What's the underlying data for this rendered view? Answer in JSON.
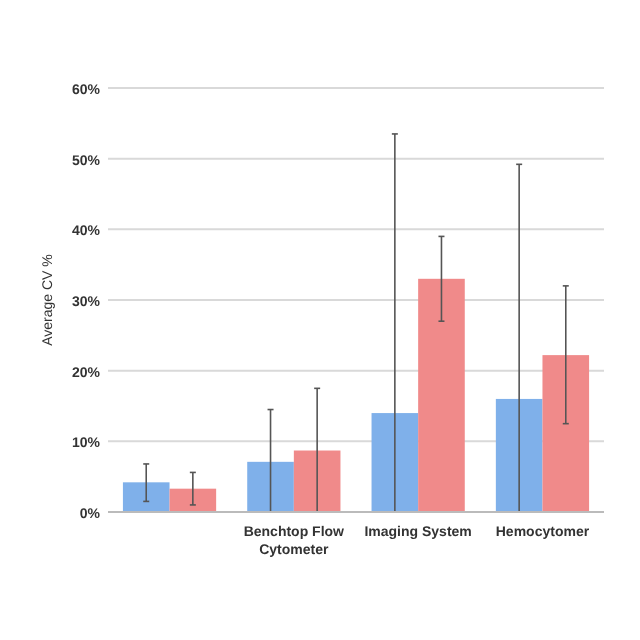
{
  "chart_data": {
    "type": "bar",
    "ylabel": "Average CV %",
    "categories": [
      null,
      "Benchtop Flow Cytometer",
      "Imaging System",
      "Hemocytomer"
    ],
    "series": [
      {
        "color": "#7fb0ea",
        "values": [
          4.2,
          7.1,
          14,
          16
        ],
        "errors": [
          [
            1.5,
            6.8
          ],
          [
            0,
            14.5
          ],
          [
            0,
            53.5
          ],
          [
            0,
            49.2
          ]
        ]
      },
      {
        "color": "#f08a8a",
        "values": [
          3.3,
          8.7,
          33,
          22.2
        ],
        "errors": [
          [
            1,
            5.6
          ],
          [
            0,
            17.5
          ],
          [
            27,
            39
          ],
          [
            12.5,
            32
          ]
        ]
      }
    ],
    "ylim": [
      0,
      60
    ],
    "yticks": [
      {
        "value": 0,
        "label": "0%"
      },
      {
        "value": 10,
        "label": "10%"
      },
      {
        "value": 20,
        "label": "20%"
      },
      {
        "value": 30,
        "label": "30%"
      },
      {
        "value": 40,
        "label": "40%"
      },
      {
        "value": 50,
        "label": "50%"
      },
      {
        "value": 60,
        "label": "60%"
      }
    ],
    "grid": "y"
  }
}
